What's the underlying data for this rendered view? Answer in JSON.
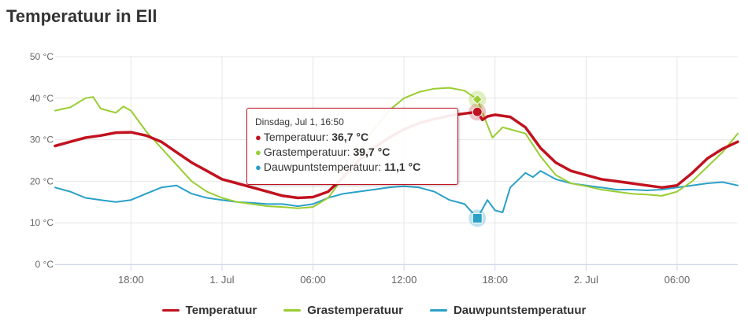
{
  "title": "Temperatuur in Ell",
  "colors": {
    "temperature": "#c1121f",
    "grass": "#9acd32",
    "dewpoint": "#2aa0c8",
    "grid": "#e6e6e6",
    "axis_text": "#666666"
  },
  "chart_data": {
    "type": "line",
    "title": "Temperatuur in Ell",
    "y_unit": "°C",
    "ylim": [
      0,
      50
    ],
    "y_ticks": [
      "0 °C",
      "10 °C",
      "20 °C",
      "30 °C",
      "40 °C",
      "50 °C"
    ],
    "xlim": [
      "2025-06-30T13:00",
      "2025-07-02T10:00"
    ],
    "x_ticks": [
      {
        "label": "18:00",
        "at": "2025-06-30T18:00"
      },
      {
        "label": "1. Jul",
        "at": "2025-07-01T00:00"
      },
      {
        "label": "06:00",
        "at": "2025-07-01T06:00"
      },
      {
        "label": "12:00",
        "at": "2025-07-01T12:00"
      },
      {
        "label": "18:00",
        "at": "2025-07-01T18:00"
      },
      {
        "label": "2. Jul",
        "at": "2025-07-02T00:00"
      },
      {
        "label": "06:00",
        "at": "2025-07-02T06:00"
      }
    ],
    "grid": true,
    "legend_position": "bottom-center",
    "series": [
      {
        "name": "Temperatuur",
        "color": "#c1121f",
        "points": [
          [
            "2025-06-30T13:00",
            28.5
          ],
          [
            "2025-06-30T14:00",
            29.5
          ],
          [
            "2025-06-30T15:00",
            30.5
          ],
          [
            "2025-06-30T16:00",
            31.0
          ],
          [
            "2025-06-30T17:00",
            31.7
          ],
          [
            "2025-06-30T18:00",
            31.8
          ],
          [
            "2025-06-30T19:00",
            31.0
          ],
          [
            "2025-06-30T20:00",
            29.5
          ],
          [
            "2025-06-30T21:00",
            27.0
          ],
          [
            "2025-06-30T22:00",
            24.5
          ],
          [
            "2025-06-30T23:00",
            22.5
          ],
          [
            "2025-07-01T00:00",
            20.5
          ],
          [
            "2025-07-01T01:00",
            19.5
          ],
          [
            "2025-07-01T02:00",
            18.5
          ],
          [
            "2025-07-01T03:00",
            17.5
          ],
          [
            "2025-07-01T04:00",
            16.5
          ],
          [
            "2025-07-01T05:00",
            16.0
          ],
          [
            "2025-07-01T06:00",
            16.2
          ],
          [
            "2025-07-01T07:00",
            17.5
          ],
          [
            "2025-07-01T08:00",
            21.0
          ],
          [
            "2025-07-01T09:00",
            25.0
          ],
          [
            "2025-07-01T10:00",
            28.0
          ],
          [
            "2025-07-01T11:00",
            30.5
          ],
          [
            "2025-07-01T12:00",
            32.5
          ],
          [
            "2025-07-01T13:00",
            34.0
          ],
          [
            "2025-07-01T14:00",
            35.0
          ],
          [
            "2025-07-01T15:00",
            35.8
          ],
          [
            "2025-07-01T16:00",
            36.3
          ],
          [
            "2025-07-01T16:50",
            36.7
          ],
          [
            "2025-07-01T17:10",
            34.8
          ],
          [
            "2025-07-01T17:30",
            35.6
          ],
          [
            "2025-07-01T18:00",
            36.0
          ],
          [
            "2025-07-01T19:00",
            35.5
          ],
          [
            "2025-07-01T20:00",
            33.0
          ],
          [
            "2025-07-01T21:00",
            28.0
          ],
          [
            "2025-07-01T22:00",
            24.5
          ],
          [
            "2025-07-01T23:00",
            22.5
          ],
          [
            "2025-07-02T00:00",
            21.5
          ],
          [
            "2025-07-02T01:00",
            20.5
          ],
          [
            "2025-07-02T02:00",
            20.0
          ],
          [
            "2025-07-02T03:00",
            19.5
          ],
          [
            "2025-07-02T04:00",
            19.0
          ],
          [
            "2025-07-02T05:00",
            18.5
          ],
          [
            "2025-07-02T06:00",
            19.0
          ],
          [
            "2025-07-02T07:00",
            22.0
          ],
          [
            "2025-07-02T08:00",
            25.5
          ],
          [
            "2025-07-02T09:00",
            27.8
          ],
          [
            "2025-07-02T10:00",
            29.5
          ]
        ]
      },
      {
        "name": "Grastemperatuur",
        "color": "#9acd32",
        "points": [
          [
            "2025-06-30T13:00",
            37.0
          ],
          [
            "2025-06-30T14:00",
            37.8
          ],
          [
            "2025-06-30T15:00",
            40.0
          ],
          [
            "2025-06-30T15:30",
            40.3
          ],
          [
            "2025-06-30T16:00",
            37.5
          ],
          [
            "2025-06-30T17:00",
            36.5
          ],
          [
            "2025-06-30T17:30",
            38.0
          ],
          [
            "2025-06-30T18:00",
            37.0
          ],
          [
            "2025-06-30T19:00",
            32.0
          ],
          [
            "2025-06-30T20:00",
            28.0
          ],
          [
            "2025-06-30T21:00",
            24.0
          ],
          [
            "2025-06-30T22:00",
            20.0
          ],
          [
            "2025-06-30T23:00",
            17.5
          ],
          [
            "2025-07-01T00:00",
            16.0
          ],
          [
            "2025-07-01T01:00",
            15.0
          ],
          [
            "2025-07-01T02:00",
            14.5
          ],
          [
            "2025-07-01T03:00",
            14.0
          ],
          [
            "2025-07-01T04:00",
            13.8
          ],
          [
            "2025-07-01T05:00",
            13.5
          ],
          [
            "2025-07-01T06:00",
            13.8
          ],
          [
            "2025-07-01T07:00",
            16.0
          ],
          [
            "2025-07-01T08:00",
            21.0
          ],
          [
            "2025-07-01T09:00",
            27.0
          ],
          [
            "2025-07-01T10:00",
            32.5
          ],
          [
            "2025-07-01T11:00",
            37.0
          ],
          [
            "2025-07-01T12:00",
            40.0
          ],
          [
            "2025-07-01T13:00",
            41.5
          ],
          [
            "2025-07-01T14:00",
            42.3
          ],
          [
            "2025-07-01T15:00",
            42.5
          ],
          [
            "2025-07-01T16:00",
            41.8
          ],
          [
            "2025-07-01T16:50",
            39.7
          ],
          [
            "2025-07-01T17:20",
            35.0
          ],
          [
            "2025-07-01T17:50",
            30.5
          ],
          [
            "2025-07-01T18:30",
            33.0
          ],
          [
            "2025-07-01T19:00",
            32.5
          ],
          [
            "2025-07-01T20:00",
            31.5
          ],
          [
            "2025-07-01T21:00",
            26.0
          ],
          [
            "2025-07-01T22:00",
            21.5
          ],
          [
            "2025-07-01T23:00",
            19.5
          ],
          [
            "2025-07-02T00:00",
            18.8
          ],
          [
            "2025-07-02T01:00",
            18.0
          ],
          [
            "2025-07-02T02:00",
            17.5
          ],
          [
            "2025-07-02T03:00",
            17.0
          ],
          [
            "2025-07-02T04:00",
            16.8
          ],
          [
            "2025-07-02T05:00",
            16.5
          ],
          [
            "2025-07-02T06:00",
            17.5
          ],
          [
            "2025-07-02T07:00",
            20.0
          ],
          [
            "2025-07-02T08:00",
            23.5
          ],
          [
            "2025-07-02T09:00",
            27.0
          ],
          [
            "2025-07-02T10:00",
            31.5
          ]
        ]
      },
      {
        "name": "Dauwpuntstemperatuur",
        "color": "#2aa0c8",
        "points": [
          [
            "2025-06-30T13:00",
            18.5
          ],
          [
            "2025-06-30T14:00",
            17.5
          ],
          [
            "2025-06-30T15:00",
            16.0
          ],
          [
            "2025-06-30T16:00",
            15.5
          ],
          [
            "2025-06-30T17:00",
            15.0
          ],
          [
            "2025-06-30T18:00",
            15.5
          ],
          [
            "2025-06-30T19:00",
            17.0
          ],
          [
            "2025-06-30T20:00",
            18.5
          ],
          [
            "2025-06-30T21:00",
            19.0
          ],
          [
            "2025-06-30T22:00",
            17.0
          ],
          [
            "2025-06-30T23:00",
            16.0
          ],
          [
            "2025-07-01T00:00",
            15.5
          ],
          [
            "2025-07-01T01:00",
            15.0
          ],
          [
            "2025-07-01T02:00",
            14.8
          ],
          [
            "2025-07-01T03:00",
            14.5
          ],
          [
            "2025-07-01T04:00",
            14.5
          ],
          [
            "2025-07-01T05:00",
            14.0
          ],
          [
            "2025-07-01T06:00",
            14.5
          ],
          [
            "2025-07-01T07:00",
            16.0
          ],
          [
            "2025-07-01T08:00",
            17.0
          ],
          [
            "2025-07-01T09:00",
            17.5
          ],
          [
            "2025-07-01T10:00",
            18.0
          ],
          [
            "2025-07-01T11:00",
            18.5
          ],
          [
            "2025-07-01T12:00",
            18.8
          ],
          [
            "2025-07-01T13:00",
            18.5
          ],
          [
            "2025-07-01T14:00",
            17.5
          ],
          [
            "2025-07-01T15:00",
            15.5
          ],
          [
            "2025-07-01T16:00",
            14.5
          ],
          [
            "2025-07-01T16:50",
            11.1
          ],
          [
            "2025-07-01T17:30",
            15.5
          ],
          [
            "2025-07-01T18:00",
            13.0
          ],
          [
            "2025-07-01T18:30",
            12.5
          ],
          [
            "2025-07-01T19:00",
            18.5
          ],
          [
            "2025-07-01T20:00",
            22.0
          ],
          [
            "2025-07-01T20:30",
            21.0
          ],
          [
            "2025-07-01T21:00",
            22.5
          ],
          [
            "2025-07-01T22:00",
            20.5
          ],
          [
            "2025-07-01T23:00",
            19.5
          ],
          [
            "2025-07-02T00:00",
            19.0
          ],
          [
            "2025-07-02T01:00",
            18.5
          ],
          [
            "2025-07-02T02:00",
            18.0
          ],
          [
            "2025-07-02T03:00",
            18.0
          ],
          [
            "2025-07-02T04:00",
            17.8
          ],
          [
            "2025-07-02T05:00",
            18.0
          ],
          [
            "2025-07-02T06:00",
            18.5
          ],
          [
            "2025-07-02T07:00",
            19.0
          ],
          [
            "2025-07-02T08:00",
            19.5
          ],
          [
            "2025-07-02T09:00",
            19.8
          ],
          [
            "2025-07-02T10:00",
            19.0
          ]
        ]
      }
    ],
    "tooltip": {
      "header": "Dinsdag, Jul 1, 16:50",
      "at": "2025-07-01T16:50",
      "rows": [
        {
          "label": "Temperatuur: ",
          "value": "36,7 °C"
        },
        {
          "label": "Grastemperatuur: ",
          "value": "39,7 °C"
        },
        {
          "label": "Dauwpuntstemperatuur: ",
          "value": "11,1 °C"
        }
      ]
    }
  }
}
